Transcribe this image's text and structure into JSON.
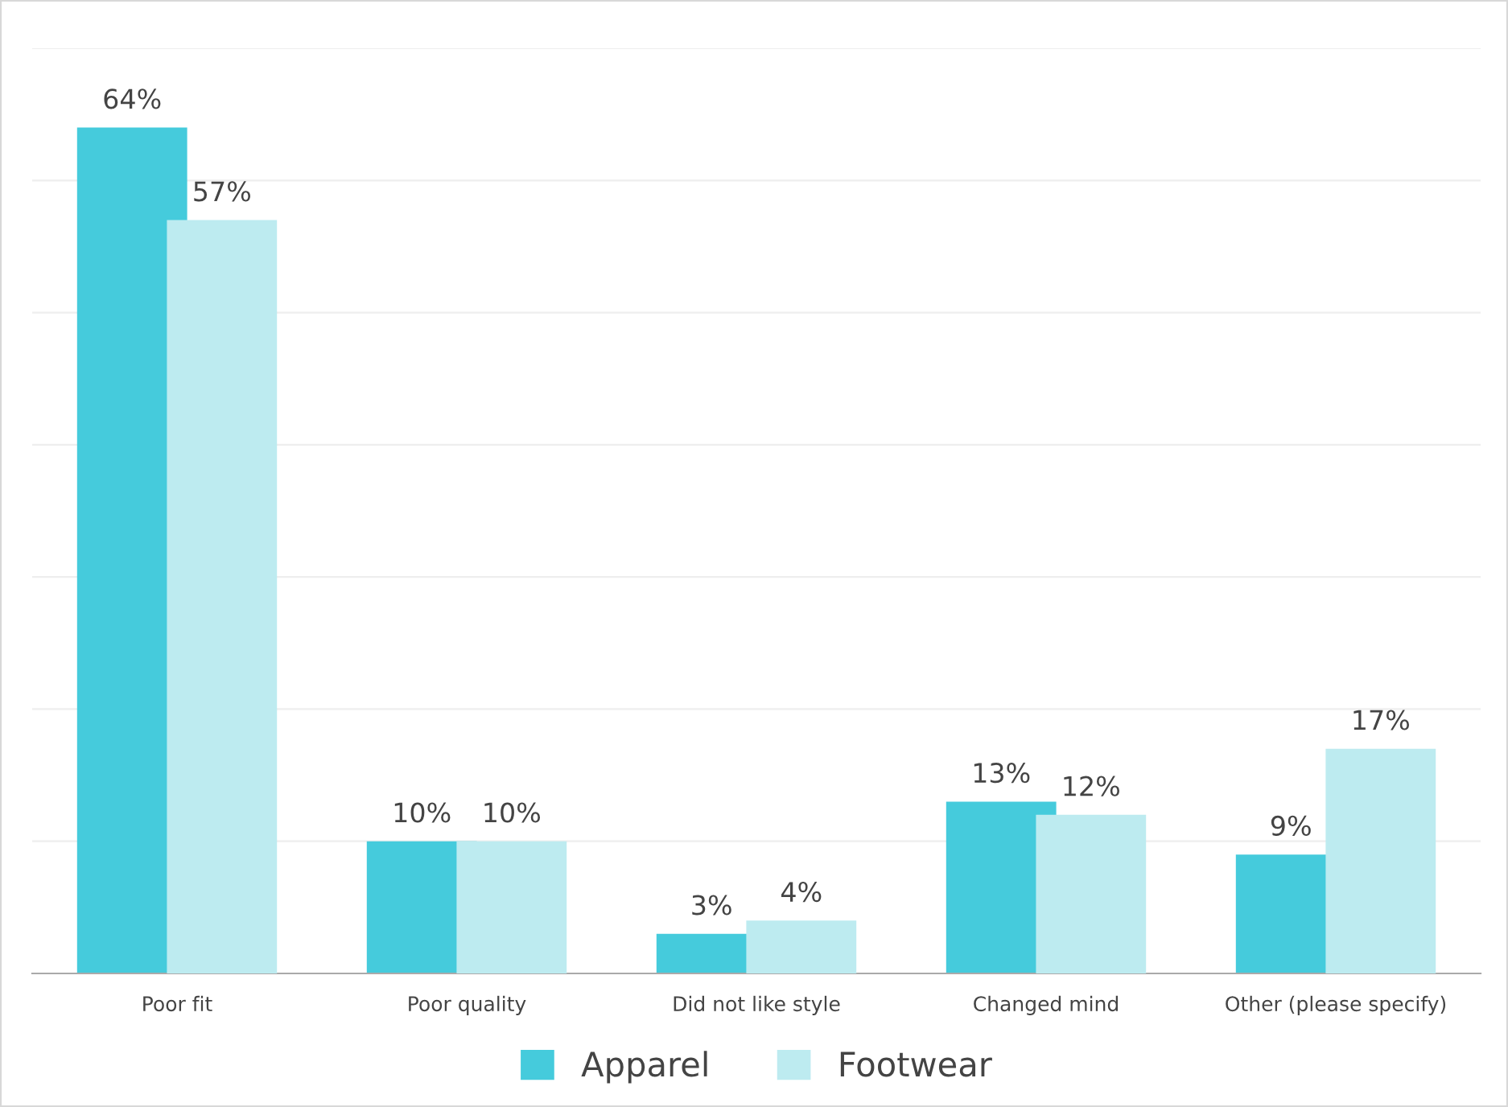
{
  "chart_data": {
    "type": "bar",
    "categories": [
      "Poor fit",
      "Poor quality",
      "Did not like style",
      "Changed mind",
      "Other (please specify)"
    ],
    "series": [
      {
        "name": "Apparel",
        "color": "#45cbdc",
        "values": [
          64,
          10,
          3,
          13,
          9
        ],
        "value_labels": [
          "64%",
          "10%",
          "3%",
          "13%",
          "9%"
        ]
      },
      {
        "name": "Footwear",
        "color": "#bdebf0",
        "values": [
          57,
          10,
          4,
          12,
          17
        ],
        "value_labels": [
          "57%",
          "10%",
          "4%",
          "12%",
          "17%"
        ]
      }
    ],
    "ylim": [
      0,
      70
    ],
    "yticks": [
      {
        "value": 0,
        "label": null
      },
      {
        "value": 10,
        "label": null
      },
      {
        "value": 20,
        "label": null
      },
      {
        "value": 30,
        "label": null
      },
      {
        "value": 40,
        "label": null
      },
      {
        "value": 50,
        "label": null
      },
      {
        "value": 60,
        "label": null
      },
      {
        "value": 70,
        "label": null
      }
    ],
    "grid": "y",
    "legend": "bottom",
    "tick_labels": "x"
  }
}
